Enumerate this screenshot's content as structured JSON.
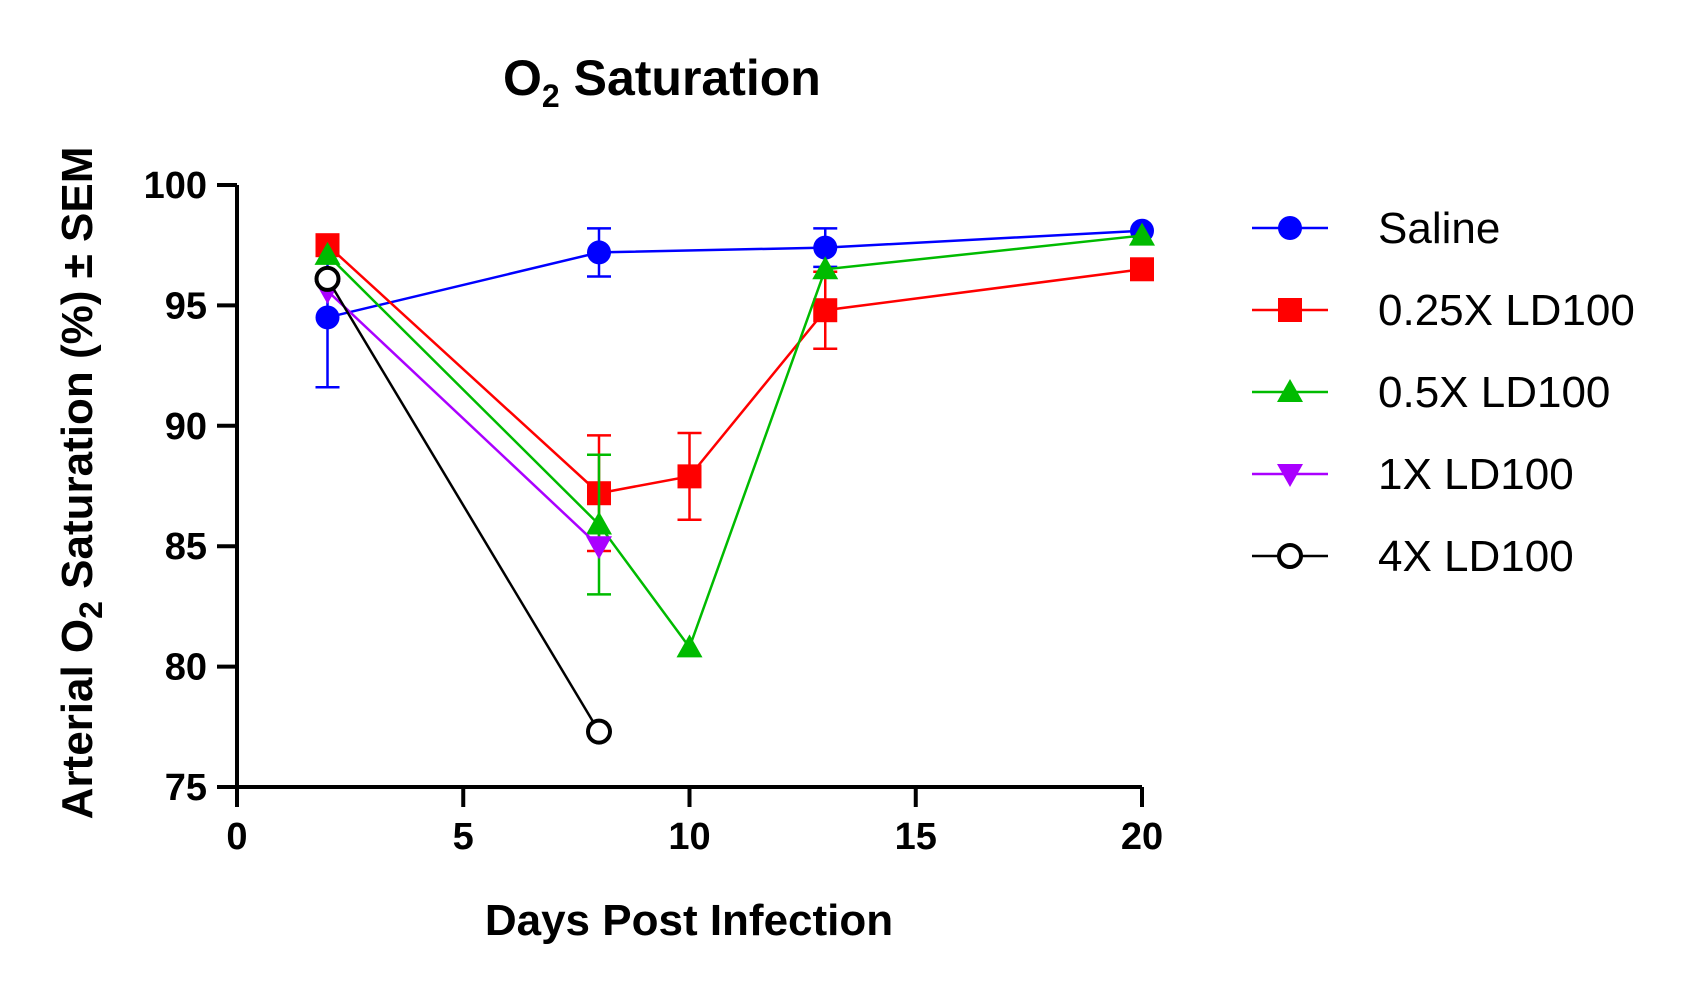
{
  "chart_data": {
    "type": "line",
    "title": {
      "main": "O",
      "sub": "2",
      "rest": " Saturation"
    },
    "xlabel": "Days Post Infection",
    "ylabel": {
      "pre": "Arterial O",
      "sub": "2",
      "post": " Saturation (%) ± SEM"
    },
    "xlim": [
      0,
      20
    ],
    "ylim": [
      75,
      100
    ],
    "xticks": [
      "0",
      "5",
      "10",
      "15",
      "20"
    ],
    "yticks": [
      "75",
      "80",
      "85",
      "90",
      "95",
      "100"
    ],
    "grid": false,
    "legend_position": "right",
    "series": [
      {
        "name": "Saline",
        "color": "#0000ff",
        "marker": "circle",
        "points": [
          {
            "x": 2,
            "y": 94.5,
            "err": 2.9
          },
          {
            "x": 8,
            "y": 97.2,
            "err": 1.0
          },
          {
            "x": 13,
            "y": 97.4,
            "err": 0.8
          },
          {
            "x": 20,
            "y": 98.1,
            "err": 0
          }
        ]
      },
      {
        "name": "0.25X LD100",
        "color": "#ff0000",
        "marker": "square",
        "points": [
          {
            "x": 2,
            "y": 97.5,
            "err": 0
          },
          {
            "x": 8,
            "y": 87.2,
            "err": 2.4
          },
          {
            "x": 10,
            "y": 87.9,
            "err": 1.8
          },
          {
            "x": 13,
            "y": 94.8,
            "err": 1.6
          },
          {
            "x": 20,
            "y": 96.5,
            "err": 0
          }
        ]
      },
      {
        "name": "0.5X LD100",
        "color": "#00bb00",
        "marker": "triangle-up",
        "points": [
          {
            "x": 2,
            "y": 97.1,
            "err": 0
          },
          {
            "x": 8,
            "y": 85.9,
            "err": 2.9
          },
          {
            "x": 10,
            "y": 80.8,
            "err": 0
          },
          {
            "x": 13,
            "y": 96.5,
            "err": 0
          },
          {
            "x": 20,
            "y": 97.9,
            "err": 0
          }
        ]
      },
      {
        "name": "1X LD100",
        "color": "#aa00ff",
        "marker": "triangle-down",
        "points": [
          {
            "x": 2,
            "y": 95.6,
            "err": 0
          },
          {
            "x": 8,
            "y": 85.0,
            "err": 0
          }
        ]
      },
      {
        "name": "4X LD100",
        "color": "#000000",
        "marker": "open-circle",
        "points": [
          {
            "x": 2,
            "y": 96.1,
            "err": 0
          },
          {
            "x": 8,
            "y": 77.3,
            "err": 0
          }
        ]
      }
    ]
  }
}
